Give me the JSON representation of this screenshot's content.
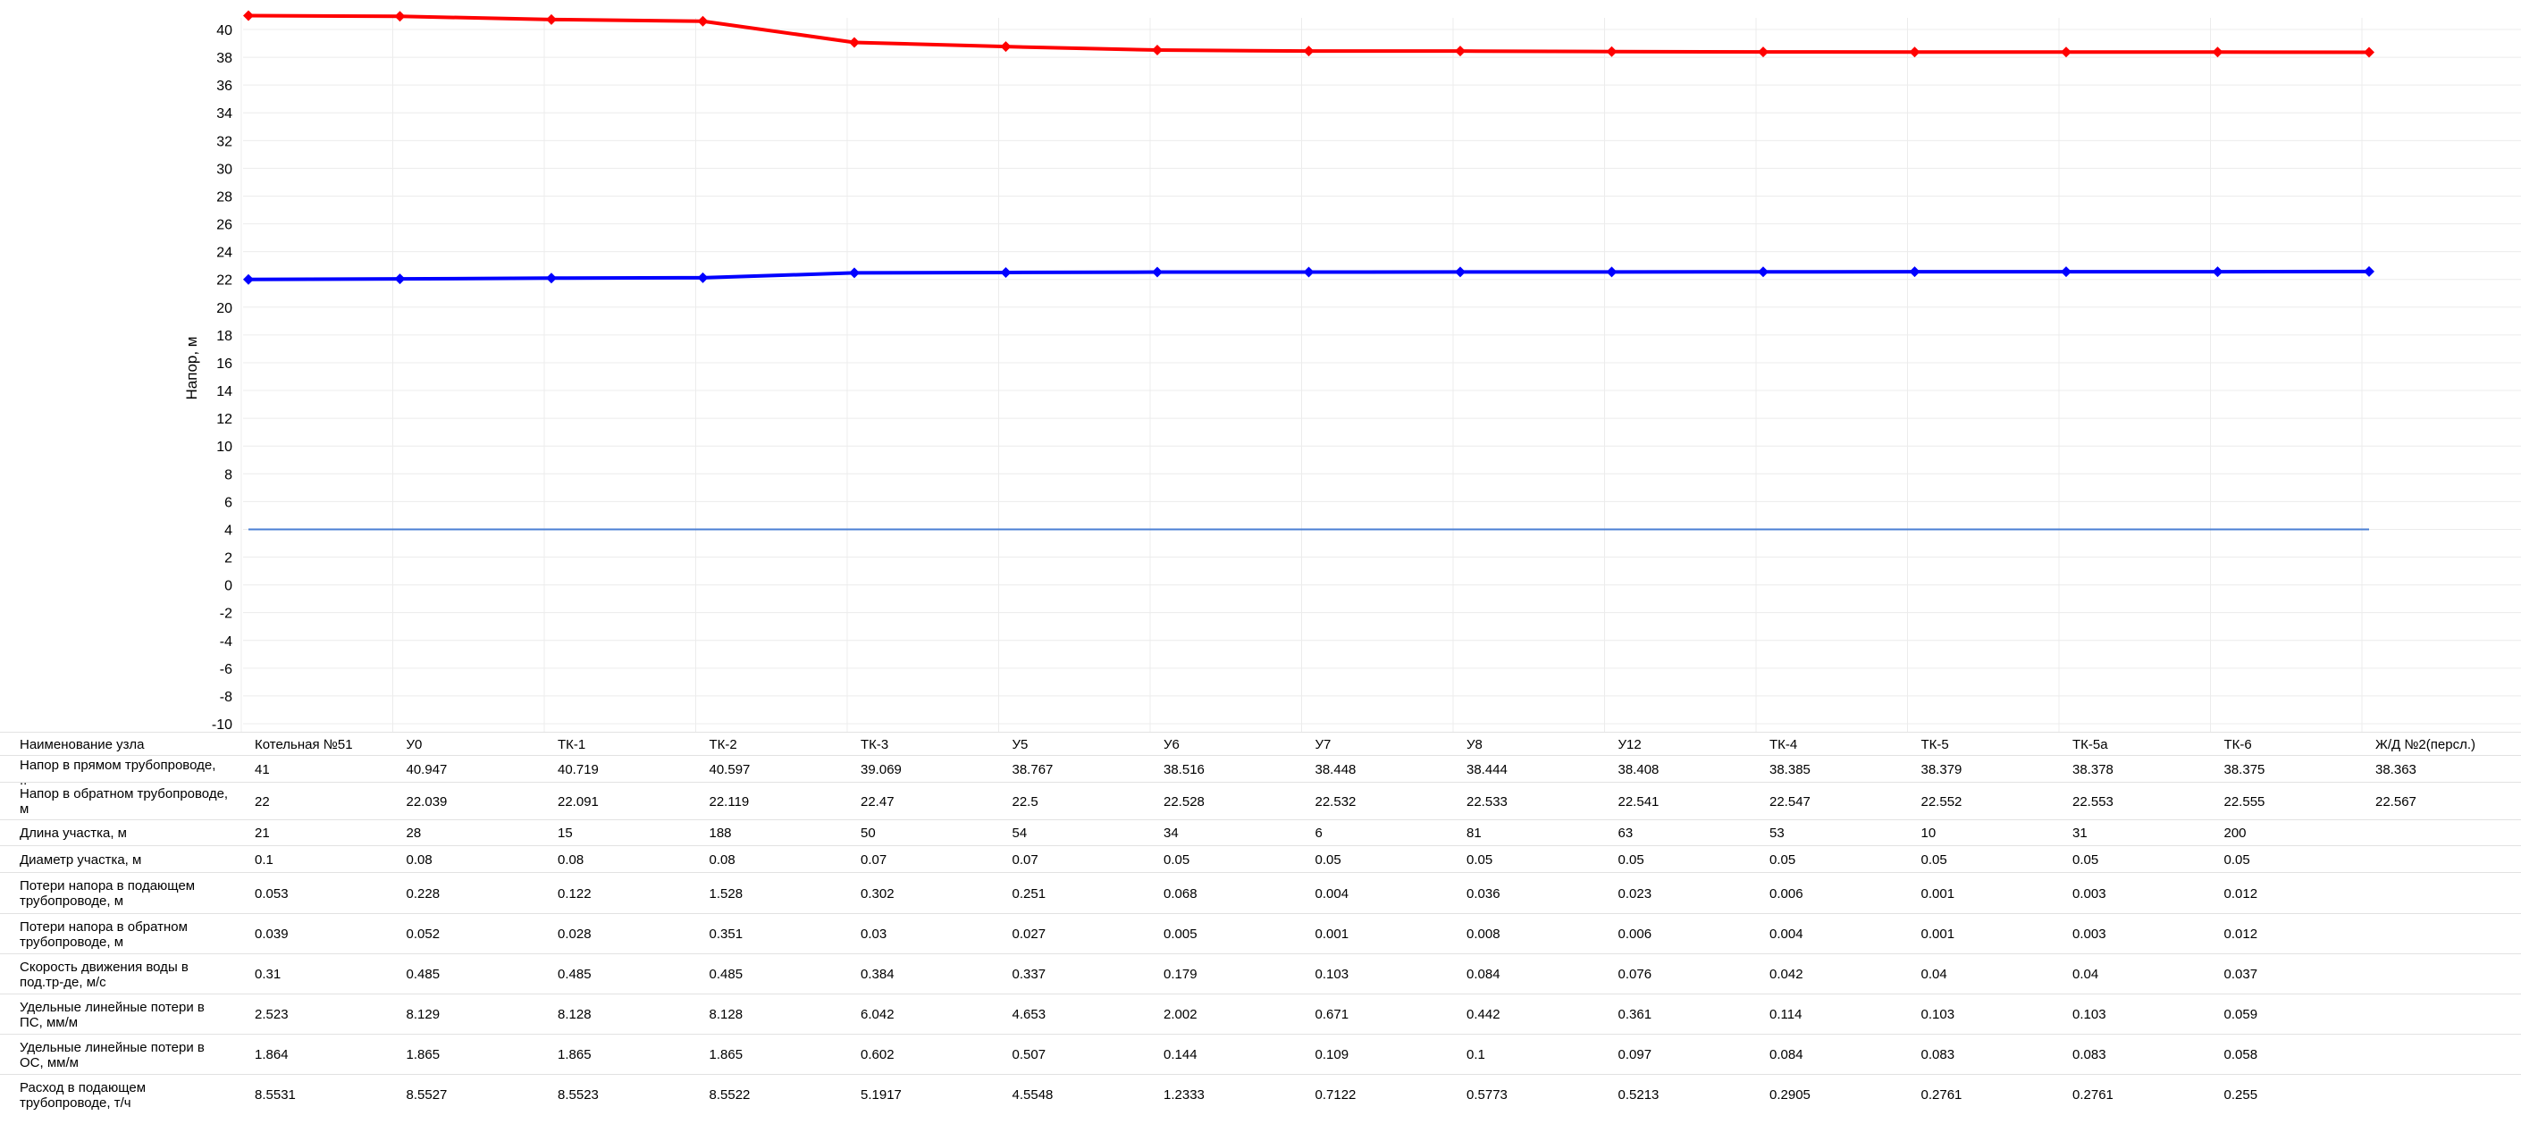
{
  "chart_data": {
    "type": "line",
    "ylabel": "Напор, м",
    "xlabel": "",
    "ylim": [
      -10,
      41
    ],
    "yticks": [
      -10,
      -8,
      -6,
      -4,
      -2,
      0,
      2,
      4,
      6,
      8,
      10,
      12,
      14,
      16,
      18,
      20,
      22,
      24,
      26,
      28,
      30,
      32,
      34,
      36,
      38,
      40
    ],
    "grid": true,
    "categories": [
      "Котельная №51",
      "У0",
      "ТК-1",
      "ТК-2",
      "ТК-3",
      "У5",
      "У6",
      "У7",
      "У8",
      "У12",
      "ТК-4",
      "ТК-5",
      "ТК-5а",
      "ТК-6",
      "Ж/Д №2(персл.)"
    ],
    "series": [
      {
        "color": "#ff0000",
        "marker": "diamond",
        "values": [
          41,
          40.947,
          40.719,
          40.597,
          39.069,
          38.767,
          38.516,
          38.448,
          38.444,
          38.408,
          38.385,
          38.379,
          38.378,
          38.375,
          38.363
        ]
      },
      {
        "color": "#0000ff",
        "marker": "diamond",
        "values": [
          22,
          22.039,
          22.091,
          22.119,
          22.47,
          22.5,
          22.528,
          22.532,
          22.533,
          22.541,
          22.547,
          22.552,
          22.553,
          22.555,
          22.567
        ]
      },
      {
        "color": "#4a7fd4",
        "marker": "none",
        "values": [
          4,
          4,
          4,
          4,
          4,
          4,
          4,
          4,
          4,
          4,
          4,
          4,
          4,
          4,
          4
        ]
      }
    ]
  },
  "table": {
    "rows": [
      {
        "label": "Наименование узла",
        "cells": [
          "Котельная №51",
          "У0",
          "ТК-1",
          "ТК-2",
          "ТК-3",
          "У5",
          "У6",
          "У7",
          "У8",
          "У12",
          "ТК-4",
          "ТК-5",
          "ТК-5а",
          "ТК-6",
          "Ж/Д №2(персл.)"
        ]
      },
      {
        "label": "Напор в прямом трубопроводе,\n..",
        "cells": [
          "41",
          "40.947",
          "40.719",
          "40.597",
          "39.069",
          "38.767",
          "38.516",
          "38.448",
          "38.444",
          "38.408",
          "38.385",
          "38.379",
          "38.378",
          "38.375",
          "38.363"
        ]
      },
      {
        "label": "Напор в обратном трубопроводе,\nм",
        "cells": [
          "22",
          "22.039",
          "22.091",
          "22.119",
          "22.47",
          "22.5",
          "22.528",
          "22.532",
          "22.533",
          "22.541",
          "22.547",
          "22.552",
          "22.553",
          "22.555",
          "22.567"
        ]
      },
      {
        "label": "Длина участка, м",
        "cells": [
          "21",
          "28",
          "15",
          "188",
          "50",
          "54",
          "34",
          "6",
          "81",
          "63",
          "53",
          "10",
          "31",
          "200",
          ""
        ]
      },
      {
        "label": "Диаметр участка, м",
        "cells": [
          "0.1",
          "0.08",
          "0.08",
          "0.08",
          "0.07",
          "0.07",
          "0.05",
          "0.05",
          "0.05",
          "0.05",
          "0.05",
          "0.05",
          "0.05",
          "0.05",
          ""
        ]
      },
      {
        "label": "Потери напора в подающем\nтрубопроводе, м",
        "cells": [
          "0.053",
          "0.228",
          "0.122",
          "1.528",
          "0.302",
          "0.251",
          "0.068",
          "0.004",
          "0.036",
          "0.023",
          "0.006",
          "0.001",
          "0.003",
          "0.012",
          ""
        ]
      },
      {
        "label": "Потери напора в обратном\nтрубопроводе, м",
        "cells": [
          "0.039",
          "0.052",
          "0.028",
          "0.351",
          "0.03",
          "0.027",
          "0.005",
          "0.001",
          "0.008",
          "0.006",
          "0.004",
          "0.001",
          "0.003",
          "0.012",
          ""
        ]
      },
      {
        "label": "Скорость движения воды в\nпод.тр-де, м/с",
        "cells": [
          "0.31",
          "0.485",
          "0.485",
          "0.485",
          "0.384",
          "0.337",
          "0.179",
          "0.103",
          "0.084",
          "0.076",
          "0.042",
          "0.04",
          "0.04",
          "0.037",
          ""
        ]
      },
      {
        "label": "Удельные линейные потери в\nПС, мм/м",
        "cells": [
          "2.523",
          "8.129",
          "8.128",
          "8.128",
          "6.042",
          "4.653",
          "2.002",
          "0.671",
          "0.442",
          "0.361",
          "0.114",
          "0.103",
          "0.103",
          "0.059",
          ""
        ]
      },
      {
        "label": "Удельные линейные потери в\nОС, мм/м",
        "cells": [
          "1.864",
          "1.865",
          "1.865",
          "1.865",
          "0.602",
          "0.507",
          "0.144",
          "0.109",
          "0.1",
          "0.097",
          "0.084",
          "0.083",
          "0.083",
          "0.058",
          ""
        ]
      },
      {
        "label": "Расход в подающем\nтрубопроводе, т/ч",
        "cells": [
          "8.5531",
          "8.5527",
          "8.5523",
          "8.5522",
          "5.1917",
          "4.5548",
          "1.2333",
          "0.7122",
          "0.5773",
          "0.5213",
          "0.2905",
          "0.2761",
          "0.2761",
          "0.255",
          ""
        ]
      }
    ]
  }
}
